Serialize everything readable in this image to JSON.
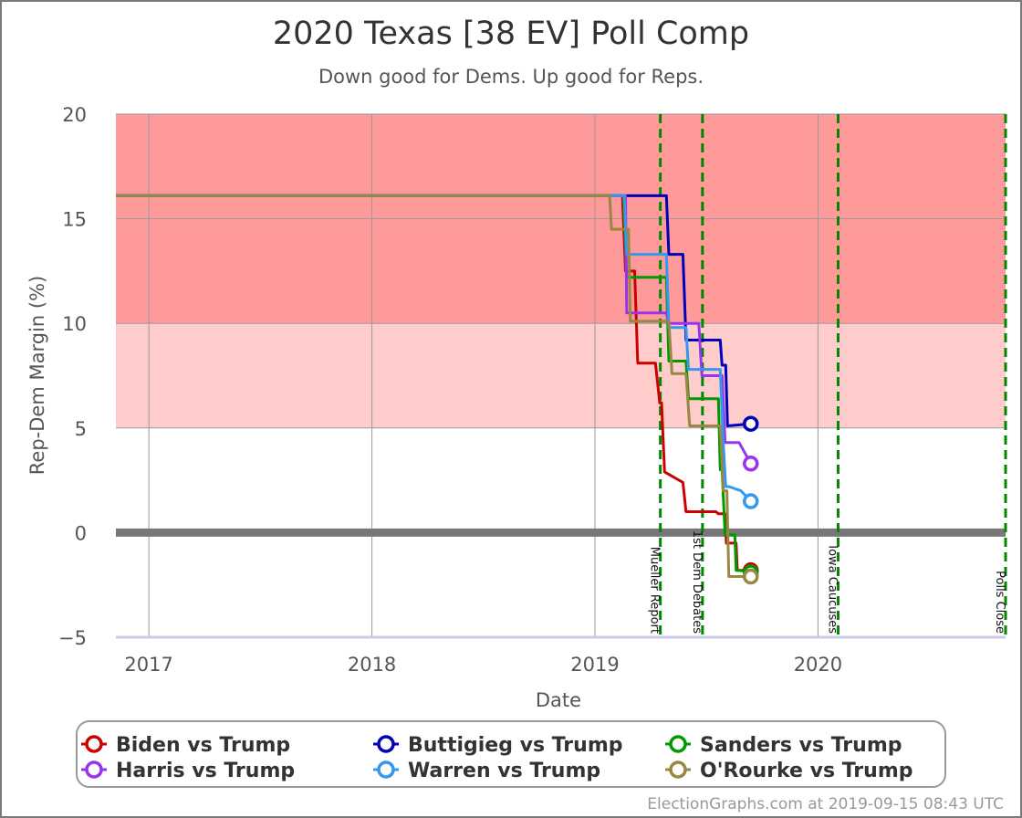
{
  "chart_data": {
    "type": "line",
    "title": "2020 Texas [38 EV] Poll Comp",
    "subtitle": "Down good for Dems. Up good for Reps.",
    "xlabel": "Date",
    "ylabel": "Rep-Dem Margin (%)",
    "ylim": [
      -5,
      20
    ],
    "xlim": [
      "2016-11-08",
      "2020-11-03"
    ],
    "y_ticks": [
      "20",
      "15",
      "10",
      "5",
      "0",
      "−5"
    ],
    "x_ticks": [
      {
        "label": "2017",
        "date": "2017-01-01"
      },
      {
        "label": "2018",
        "date": "2018-01-01"
      },
      {
        "label": "2019",
        "date": "2019-01-01"
      },
      {
        "label": "2020",
        "date": "2020-01-01"
      }
    ],
    "grid": true,
    "bands": [
      {
        "from": 10,
        "to": 20,
        "color": "#ff9a9a"
      },
      {
        "from": 5,
        "to": 10,
        "color": "#ffcccc"
      }
    ],
    "zero_line": {
      "value": 0,
      "color": "#777777"
    },
    "events": [
      {
        "label": "Mueller Report",
        "date": "2019-04-18"
      },
      {
        "label": "1st Dem Debates",
        "date": "2019-06-26"
      },
      {
        "label": "Iowa Caucuses",
        "date": "2020-02-03"
      },
      {
        "label": "Polls Close",
        "date": "2020-11-03"
      }
    ],
    "series": [
      {
        "name": "Biden vs Trump",
        "color": "#cc0000",
        "x": [
          "2016-11-08",
          "2019-02-15",
          "2019-02-20",
          "2019-03-07",
          "2019-03-12",
          "2019-04-10",
          "2019-04-17",
          "2019-04-20",
          "2019-04-25",
          "2019-05-25",
          "2019-05-30",
          "2019-07-18",
          "2019-07-22",
          "2019-08-02",
          "2019-08-04",
          "2019-08-20",
          "2019-08-22",
          "2019-09-13"
        ],
        "y": [
          16.1,
          16.1,
          12.5,
          12.5,
          8.1,
          8.1,
          6.2,
          6.2,
          2.9,
          2.4,
          1.0,
          1.0,
          0.9,
          0.9,
          -0.5,
          -0.5,
          -1.8,
          -1.8
        ]
      },
      {
        "name": "Buttigieg vs Trump",
        "color": "#0000bb",
        "x": [
          "2016-11-08",
          "2019-04-28",
          "2019-05-02",
          "2019-05-25",
          "2019-05-30",
          "2019-07-25",
          "2019-07-28",
          "2019-08-03",
          "2019-08-06",
          "2019-09-13"
        ],
        "y": [
          16.1,
          16.1,
          13.3,
          13.3,
          9.2,
          9.2,
          8.0,
          8.0,
          5.1,
          5.2
        ]
      },
      {
        "name": "Sanders vs Trump",
        "color": "#009900",
        "x": [
          "2016-11-08",
          "2019-02-17",
          "2019-02-22",
          "2019-04-28",
          "2019-05-02",
          "2019-05-30",
          "2019-06-03",
          "2019-07-22",
          "2019-07-25",
          "2019-07-28",
          "2019-08-02",
          "2019-08-18",
          "2019-08-20",
          "2019-08-25",
          "2019-09-13"
        ],
        "y": [
          16.1,
          16.1,
          12.2,
          12.2,
          8.2,
          8.2,
          6.4,
          6.4,
          3.0,
          3.0,
          -0.1,
          -0.1,
          -1.8,
          -1.8,
          -1.9
        ]
      },
      {
        "name": "Harris vs Trump",
        "color": "#9933ee",
        "x": [
          "2016-11-08",
          "2019-02-20",
          "2019-02-22",
          "2019-04-28",
          "2019-05-02",
          "2019-06-20",
          "2019-06-25",
          "2019-07-28",
          "2019-08-02",
          "2019-08-25",
          "2019-09-13"
        ],
        "y": [
          16.1,
          16.1,
          10.5,
          10.5,
          10.0,
          10.0,
          7.5,
          7.5,
          4.3,
          4.3,
          3.3
        ]
      },
      {
        "name": "Warren vs Trump",
        "color": "#3399ee",
        "x": [
          "2016-11-08",
          "2019-02-18",
          "2019-02-22",
          "2019-04-28",
          "2019-05-02",
          "2019-05-30",
          "2019-06-03",
          "2019-07-25",
          "2019-07-30",
          "2019-08-03",
          "2019-08-08",
          "2019-08-28",
          "2019-09-13"
        ],
        "y": [
          16.1,
          16.1,
          13.3,
          13.3,
          9.8,
          9.8,
          7.8,
          7.8,
          4.3,
          2.2,
          2.2,
          2.0,
          1.5
        ]
      },
      {
        "name": "O'Rourke vs Trump",
        "color": "#998844",
        "x": [
          "2016-11-08",
          "2019-01-25",
          "2019-01-28",
          "2019-02-25",
          "2019-02-28",
          "2019-05-02",
          "2019-05-07",
          "2019-05-30",
          "2019-06-05",
          "2019-07-25",
          "2019-07-30",
          "2019-08-05",
          "2019-08-08",
          "2019-09-13"
        ],
        "y": [
          16.1,
          16.1,
          14.5,
          14.5,
          10.1,
          10.1,
          7.6,
          7.6,
          5.1,
          5.1,
          2.0,
          2.0,
          -2.1,
          -2.1
        ]
      }
    ],
    "legend": {
      "placement": "bottom",
      "columns": 3
    }
  },
  "credit": "ElectionGraphs.com at 2019-09-15 08:43 UTC"
}
